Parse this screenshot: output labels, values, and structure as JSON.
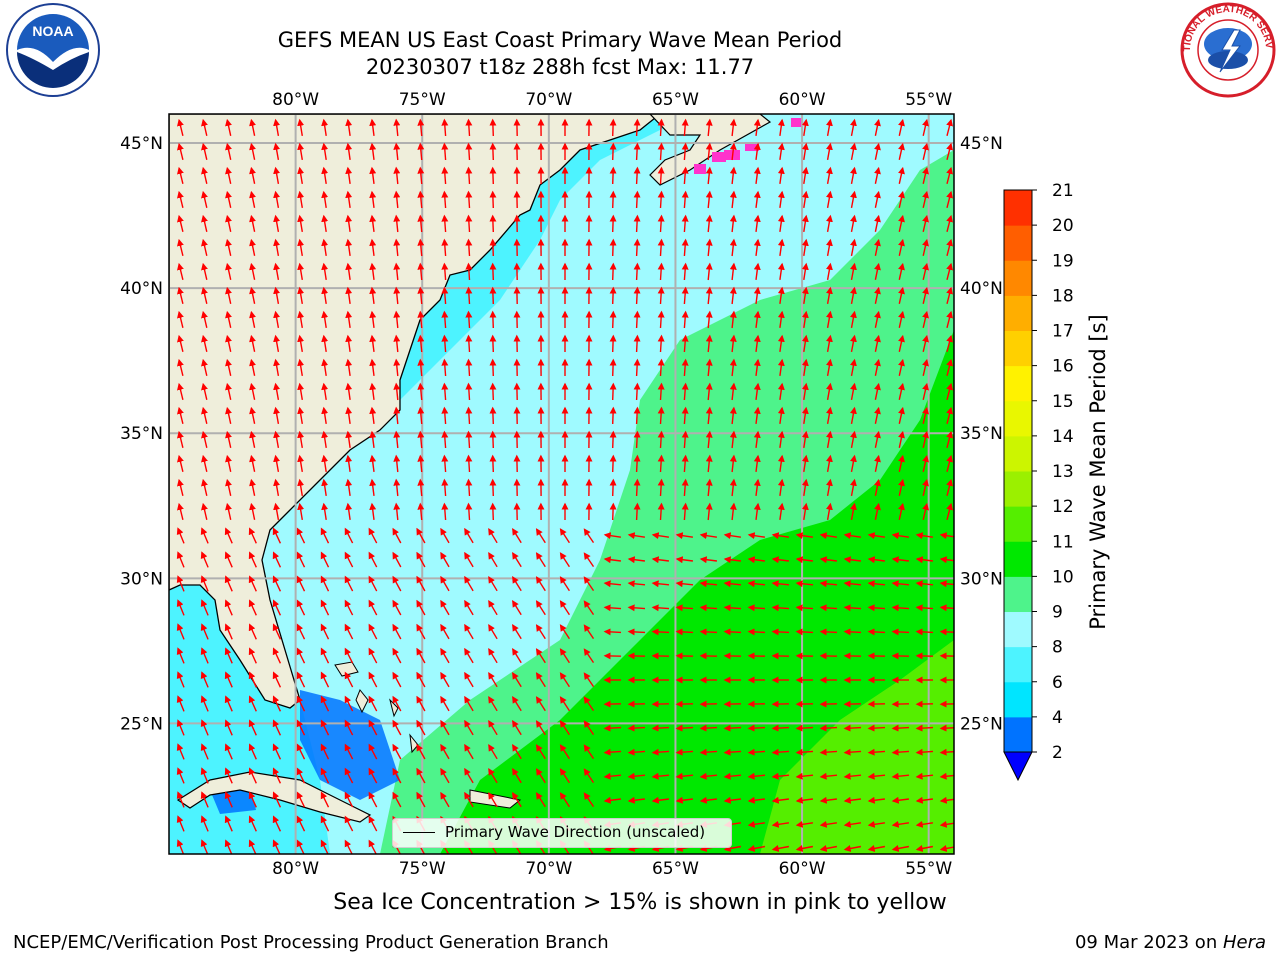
{
  "header": {
    "title_line1": "GEFS MEAN US East Coast Primary Wave Mean Period",
    "title_line2": "20230307 t18z 288h fcst   Max: 11.77"
  },
  "logos": {
    "left": "noaa-logo",
    "right": "national-weather-service-logo",
    "left_text": "NOAA",
    "right_text": "NATIONAL WEATHER SERVICE"
  },
  "map": {
    "lon_range": [
      -85,
      -54
    ],
    "lat_range": [
      20.5,
      46
    ],
    "lon_ticks": [
      "80°W",
      "75°W",
      "70°W",
      "65°W",
      "60°W",
      "55°W"
    ],
    "lat_ticks": [
      "45°N",
      "40°N",
      "35°N",
      "30°N",
      "25°N"
    ],
    "grid": true,
    "land_color": "#efeedb",
    "arrow_color": "#ff0000",
    "ice_color": "#ff33cc"
  },
  "legend": {
    "label": "Primary Wave Direction (unscaled)",
    "placement": "bottom-center"
  },
  "colorbar": {
    "label": "Primary Wave Mean Period [s]",
    "ticks": [
      "2",
      "4",
      "6",
      "8",
      "9",
      "10",
      "11",
      "12",
      "13",
      "14",
      "15",
      "16",
      "17",
      "18",
      "19",
      "20",
      "21"
    ],
    "colors": [
      "#0073ff",
      "#00e5ff",
      "#4df3ff",
      "#9ffaff",
      "#4ef38b",
      "#00e800",
      "#55ee00",
      "#9bf000",
      "#ccf500",
      "#e9f700",
      "#fff200",
      "#ffd000",
      "#ffae00",
      "#ff8800",
      "#ff5e00",
      "#ff3000"
    ],
    "extend_min_color": "#0000ff"
  },
  "caption": "Sea Ice Concentration > 15% is shown in pink to yellow",
  "footer": {
    "left": "NCEP/EMC/Verification Post Processing Product Generation Branch",
    "right_date": "09 Mar 2023 on ",
    "right_machine": "Hera"
  }
}
